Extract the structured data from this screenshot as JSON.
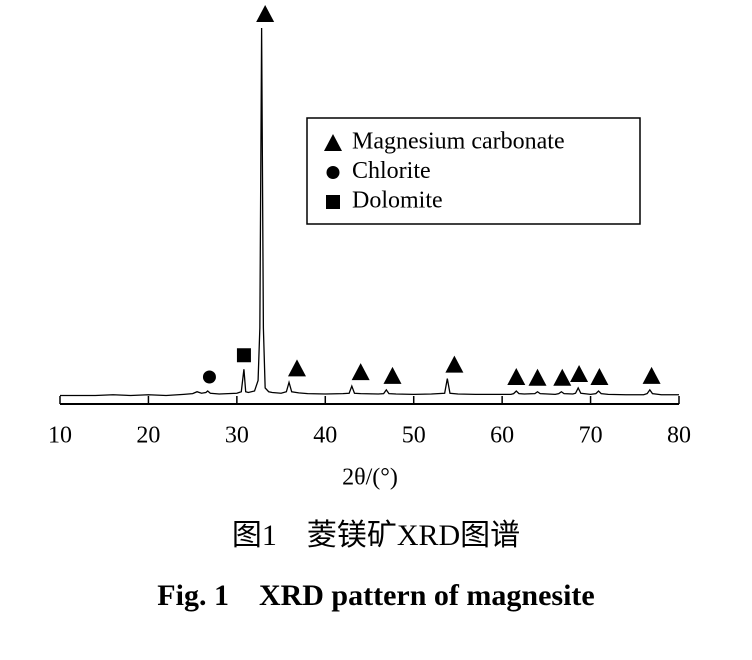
{
  "chart_data": {
    "type": "line",
    "xlabel": "2θ/(°)",
    "xlim": [
      10,
      80
    ],
    "xticks": [
      10,
      20,
      30,
      40,
      50,
      60,
      70,
      80
    ],
    "ylim": [
      0,
      100
    ],
    "color": "#000000",
    "legend": "upper right",
    "x": [
      10,
      12,
      14,
      16,
      18,
      20,
      22,
      24,
      25,
      25.5,
      26,
      26.5,
      26.7,
      27,
      28,
      29,
      30,
      30.5,
      30.8,
      31,
      31.3,
      32,
      32.4,
      32.6,
      32.8,
      33.0,
      33.2,
      33.6,
      34,
      35,
      35.6,
      35.9,
      36.2,
      37,
      38,
      40,
      42,
      42.7,
      43.0,
      43.3,
      44,
      46,
      46.6,
      46.9,
      47.2,
      48,
      50,
      52,
      53.5,
      53.8,
      54.1,
      55,
      57,
      59,
      61,
      61.3,
      61.6,
      61.9,
      62.5,
      63.7,
      64,
      64.3,
      66,
      66.4,
      66.7,
      67,
      68,
      68.3,
      68.6,
      68.9,
      70,
      70.6,
      70.9,
      71.2,
      72,
      74,
      76,
      76.4,
      76.7,
      77,
      78,
      80
    ],
    "values": [
      2,
      2,
      2,
      2.2,
      2,
      2.2,
      2,
      2.3,
      2.5,
      3,
      2.6,
      2.8,
      3.2,
      2.6,
      2.4,
      2.5,
      2.6,
      3,
      9,
      3,
      2.8,
      3.2,
      6,
      20,
      100,
      20,
      4,
      3,
      2.8,
      2.6,
      3,
      5.5,
      3,
      2.7,
      2.5,
      2.4,
      2.5,
      2.6,
      4.5,
      2.6,
      2.5,
      2.4,
      2.5,
      3.5,
      2.5,
      2.4,
      2.3,
      2.4,
      2.6,
      6.5,
      2.6,
      2.4,
      2.3,
      2.3,
      2.3,
      2.5,
      3.2,
      2.5,
      2.4,
      2.5,
      3,
      2.5,
      2.3,
      2.5,
      3,
      2.5,
      2.4,
      2.6,
      4,
      2.6,
      2.3,
      2.5,
      3.2,
      2.5,
      2.3,
      2.2,
      2.2,
      2.5,
      3.5,
      2.5,
      2.2,
      2.2
    ],
    "markers": [
      {
        "name": "Magnesium carbonate",
        "shape": "triangle",
        "x": [
          33.2,
          36.8,
          44.0,
          47.6,
          54.6,
          61.6,
          64.0,
          66.8,
          68.7,
          71.0,
          76.9
        ]
      },
      {
        "name": "Chlorite",
        "shape": "circle",
        "x": [
          26.9
        ]
      },
      {
        "name": "Dolomite",
        "shape": "square",
        "x": [
          30.8
        ]
      }
    ]
  },
  "caption": {
    "chinese": "图1　菱镁矿XRD图谱",
    "english": "Fig. 1　XRD pattern of magnesite"
  }
}
